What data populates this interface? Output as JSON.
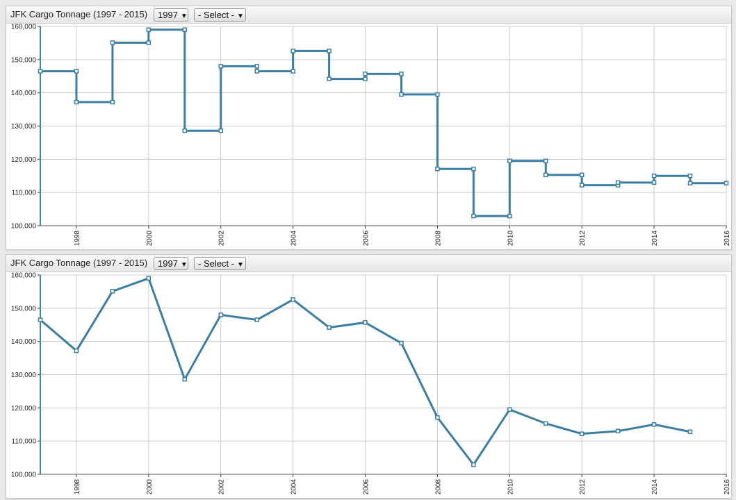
{
  "colors": {
    "series": "#3a7fa3",
    "grid": "#cccccc",
    "axis": "#3b8bb0"
  },
  "panels": [
    {
      "title": "JFK Cargo Tonnage (1997 - 2015)",
      "year_selector": {
        "value": "1997",
        "arrow": "▼"
      },
      "select_dropdown": {
        "value": "- Select -",
        "arrow": "▼"
      }
    },
    {
      "title": "JFK Cargo Tonnage (1997 - 2015)",
      "year_selector": {
        "value": "1997",
        "arrow": "▼"
      },
      "select_dropdown": {
        "value": "- Select -",
        "arrow": "▼"
      }
    }
  ],
  "chart_data": [
    {
      "type": "line",
      "style": "step",
      "x": [
        1997,
        1998,
        1999,
        2000,
        2001,
        2002,
        2003,
        2004,
        2005,
        2006,
        2007,
        2008,
        2009,
        2010,
        2011,
        2012,
        2013,
        2014,
        2015
      ],
      "values": [
        146500,
        137200,
        155100,
        159000,
        128600,
        148000,
        146500,
        152600,
        144200,
        145700,
        139500,
        117100,
        102900,
        119500,
        115300,
        112200,
        113000,
        115000,
        112800
      ],
      "xlim": [
        1997,
        2016
      ],
      "ylim": [
        100000,
        160000
      ],
      "x_ticks": [
        "1998",
        "2000",
        "2002",
        "2004",
        "2006",
        "2008",
        "2010",
        "2012",
        "2014",
        "2016"
      ],
      "y_ticks": [
        "100,000",
        "110,000",
        "120,000",
        "130,000",
        "140,000",
        "150,000",
        "160,000"
      ],
      "grid": true
    },
    {
      "type": "line",
      "style": "linear",
      "x": [
        1997,
        1998,
        1999,
        2000,
        2001,
        2002,
        2003,
        2004,
        2005,
        2006,
        2007,
        2008,
        2009,
        2010,
        2011,
        2012,
        2013,
        2014,
        2015
      ],
      "values": [
        146500,
        137200,
        155100,
        159000,
        128600,
        148000,
        146500,
        152600,
        144200,
        145700,
        139500,
        117100,
        102900,
        119500,
        115300,
        112200,
        113000,
        115000,
        112800
      ],
      "xlim": [
        1997,
        2016
      ],
      "ylim": [
        100000,
        160000
      ],
      "x_ticks": [
        "1998",
        "2000",
        "2002",
        "2004",
        "2006",
        "2008",
        "2010",
        "2012",
        "2014",
        "2016"
      ],
      "y_ticks": [
        "100,000",
        "110,000",
        "120,000",
        "130,000",
        "140,000",
        "150,000",
        "160,000"
      ],
      "grid": true
    }
  ]
}
